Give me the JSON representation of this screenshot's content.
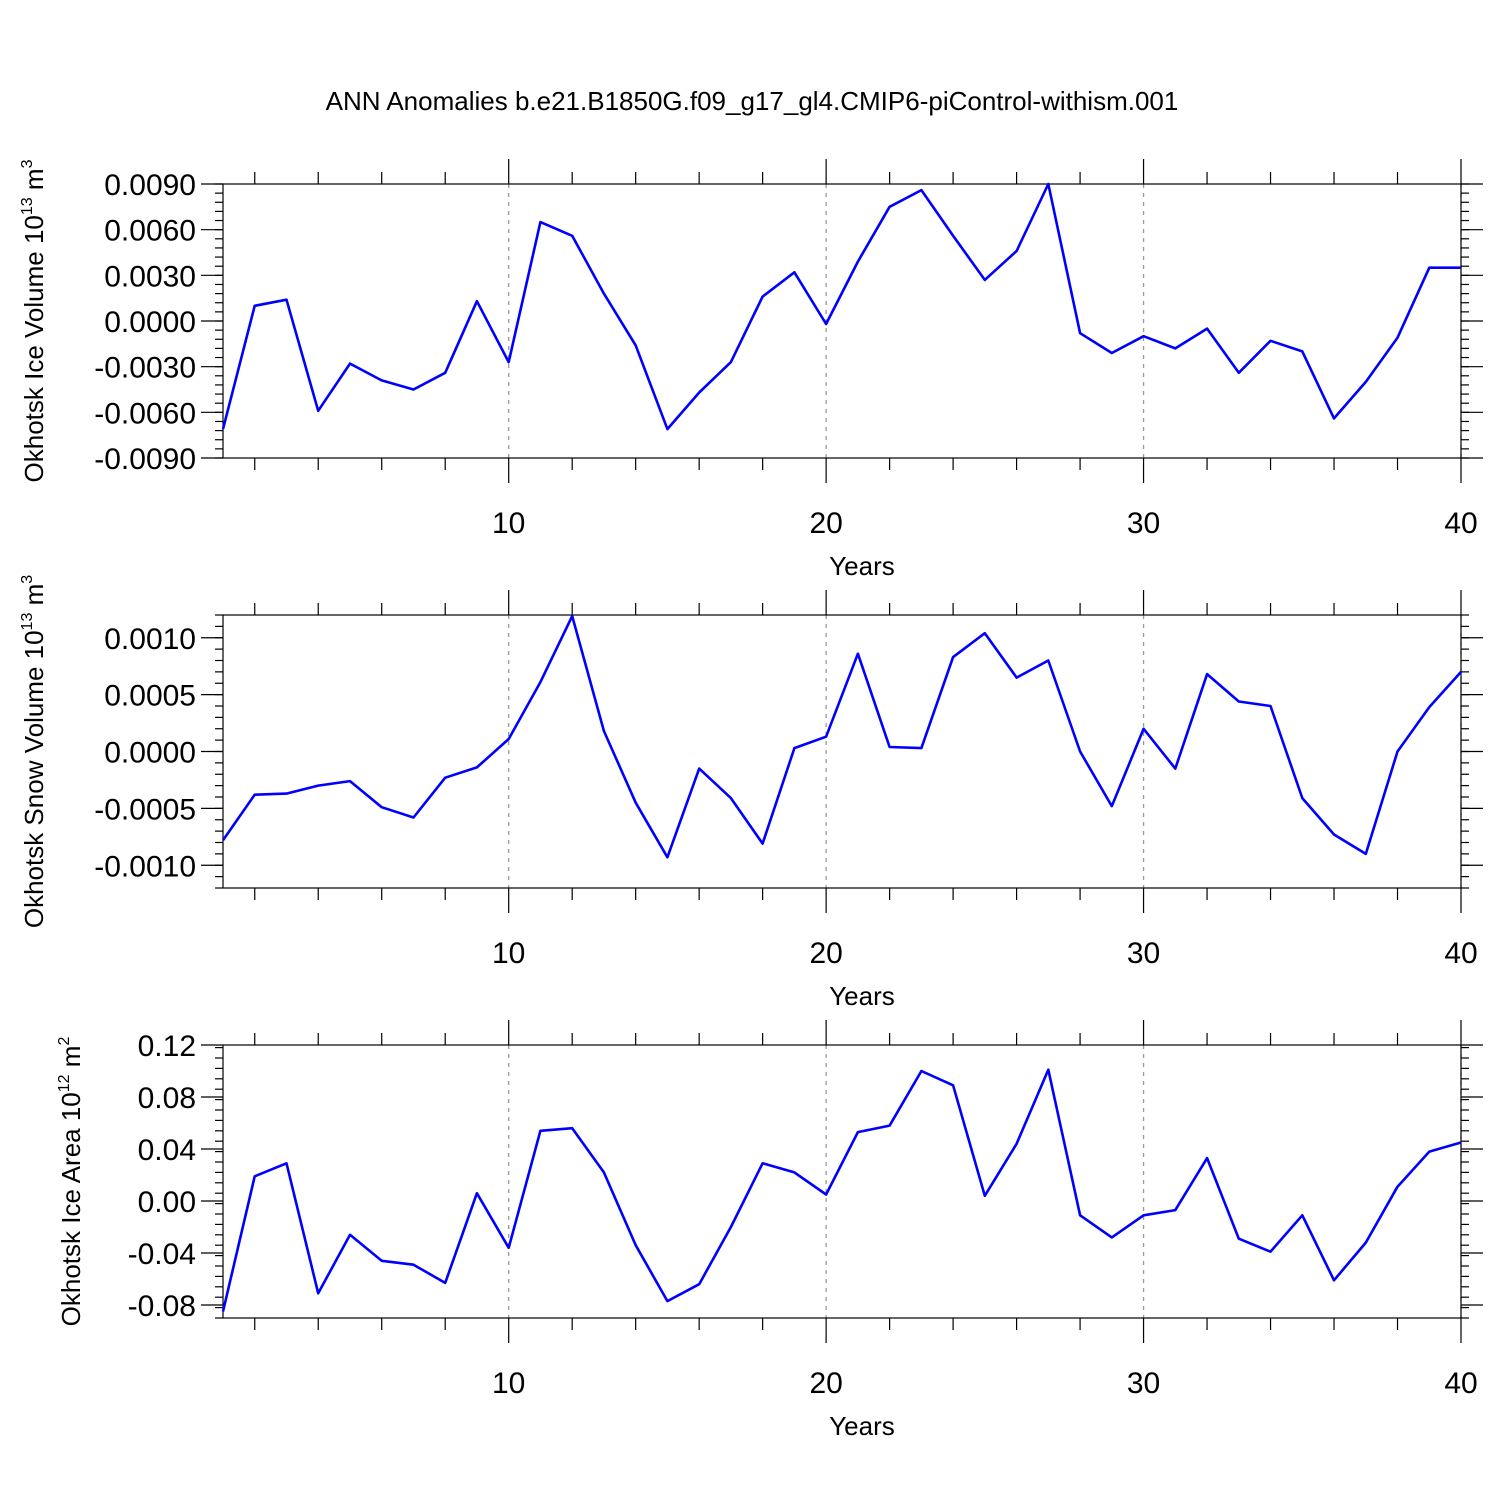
{
  "figure": {
    "title": "ANN Anomalies b.e21.B1850G.f09_g17_gl4.CMIP6-piControl-withism.001"
  },
  "chart_data": [
    {
      "type": "line",
      "ylabel": {
        "text": "Okhotsk Ice Volume 10",
        "exp": "13",
        "unit": " m",
        "unit_exp": "3"
      },
      "xlabel": "Years",
      "xlim": [
        1,
        40
      ],
      "ylim": [
        -0.009,
        0.009
      ],
      "xticks": [
        10,
        20,
        30,
        40
      ],
      "xtick_labels": [
        "10",
        "20",
        "30",
        "40"
      ],
      "yticks": [
        0.009,
        0.006,
        0.003,
        0.0,
        -0.003,
        -0.006,
        -0.009
      ],
      "ytick_labels": [
        "0.0090",
        "0.0060",
        "0.0030",
        "0.0000",
        "-0.0030",
        "-0.0060",
        "-0.0090"
      ],
      "grid_x": true,
      "series": [
        {
          "color": "#0000ff",
          "x": [
            1,
            2,
            3,
            4,
            5,
            6,
            7,
            8,
            9,
            10,
            11,
            12,
            13,
            14,
            15,
            16,
            17,
            18,
            19,
            20,
            21,
            22,
            23,
            24,
            25,
            26,
            27,
            28,
            29,
            30,
            31,
            32,
            33,
            34,
            35,
            36,
            37,
            38,
            39,
            40
          ],
          "values": [
            -0.0071,
            0.001,
            0.0014,
            -0.0059,
            -0.0028,
            -0.0039,
            -0.0045,
            -0.0034,
            0.0013,
            -0.0027,
            0.0065,
            0.0056,
            0.0018,
            -0.0016,
            -0.0071,
            -0.0047,
            -0.0027,
            0.0016,
            0.0032,
            -0.0002,
            0.0039,
            0.0075,
            0.0086,
            0.0056,
            0.0027,
            0.0046,
            0.009,
            -0.0008,
            -0.0021,
            -0.001,
            -0.0018,
            -0.0005,
            -0.0034,
            -0.0013,
            -0.002,
            -0.0064,
            -0.004,
            -0.0011,
            0.0035,
            0.0035
          ]
        }
      ]
    },
    {
      "type": "line",
      "ylabel": {
        "text": "Okhotsk Snow Volume 10",
        "exp": "13",
        "unit": " m",
        "unit_exp": "3"
      },
      "xlabel": "Years",
      "xlim": [
        1,
        40
      ],
      "ylim": [
        -0.0012,
        0.0012
      ],
      "xticks": [
        10,
        20,
        30,
        40
      ],
      "xtick_labels": [
        "10",
        "20",
        "30",
        "40"
      ],
      "yticks": [
        0.001,
        0.0005,
        0.0,
        -0.0005,
        -0.001
      ],
      "ytick_labels": [
        "0.0010",
        "0.0005",
        "0.0000",
        "-0.0005",
        "-0.0010"
      ],
      "grid_x": true,
      "series": [
        {
          "color": "#0000ff",
          "x": [
            1,
            2,
            3,
            4,
            5,
            6,
            7,
            8,
            9,
            10,
            11,
            12,
            13,
            14,
            15,
            16,
            17,
            18,
            19,
            20,
            21,
            22,
            23,
            24,
            25,
            26,
            27,
            28,
            29,
            30,
            31,
            32,
            33,
            34,
            35,
            36,
            37,
            38,
            39,
            40
          ],
          "values": [
            -0.00078,
            -0.00038,
            -0.00037,
            -0.0003,
            -0.00026,
            -0.00049,
            -0.00058,
            -0.00023,
            -0.00014,
            0.00011,
            0.00061,
            0.00119,
            0.00018,
            -0.00045,
            -0.00093,
            -0.00015,
            -0.00041,
            -0.00081,
            3e-05,
            0.00013,
            0.00086,
            4e-05,
            3e-05,
            0.00083,
            0.00104,
            0.00065,
            0.0008,
            0.0,
            -0.00048,
            0.0002,
            -0.00015,
            0.00068,
            0.00044,
            0.0004,
            -0.00041,
            -0.00073,
            -0.0009,
            0.0,
            0.00039,
            0.0007
          ]
        }
      ]
    },
    {
      "type": "line",
      "ylabel": {
        "text": "Okhotsk Ice Area 10",
        "exp": "12",
        "unit": " m",
        "unit_exp": "2"
      },
      "xlabel": "Years",
      "xlim": [
        1,
        40
      ],
      "ylim": [
        -0.09,
        0.12
      ],
      "xticks": [
        10,
        20,
        30,
        40
      ],
      "xtick_labels": [
        "10",
        "20",
        "30",
        "40"
      ],
      "yticks": [
        0.12,
        0.08,
        0.04,
        0.0,
        -0.04,
        -0.08
      ],
      "ytick_labels": [
        "0.12",
        "0.08",
        "0.04",
        "0.00",
        "-0.04",
        "-0.08"
      ],
      "grid_x": true,
      "series": [
        {
          "color": "#0000ff",
          "x": [
            1,
            2,
            3,
            4,
            5,
            6,
            7,
            8,
            9,
            10,
            11,
            12,
            13,
            14,
            15,
            16,
            17,
            18,
            19,
            20,
            21,
            22,
            23,
            24,
            25,
            26,
            27,
            28,
            29,
            30,
            31,
            32,
            33,
            34,
            35,
            36,
            37,
            38,
            39,
            40
          ],
          "values": [
            -0.085,
            0.019,
            0.029,
            -0.071,
            -0.026,
            -0.046,
            -0.049,
            -0.063,
            0.006,
            -0.036,
            0.054,
            0.056,
            0.022,
            -0.034,
            -0.077,
            -0.064,
            -0.02,
            0.029,
            0.022,
            0.005,
            0.053,
            0.058,
            0.1,
            0.089,
            0.004,
            0.044,
            0.101,
            -0.011,
            -0.028,
            -0.011,
            -0.007,
            0.033,
            -0.029,
            -0.039,
            -0.011,
            -0.061,
            -0.032,
            0.011,
            0.038,
            0.045
          ]
        }
      ]
    }
  ]
}
